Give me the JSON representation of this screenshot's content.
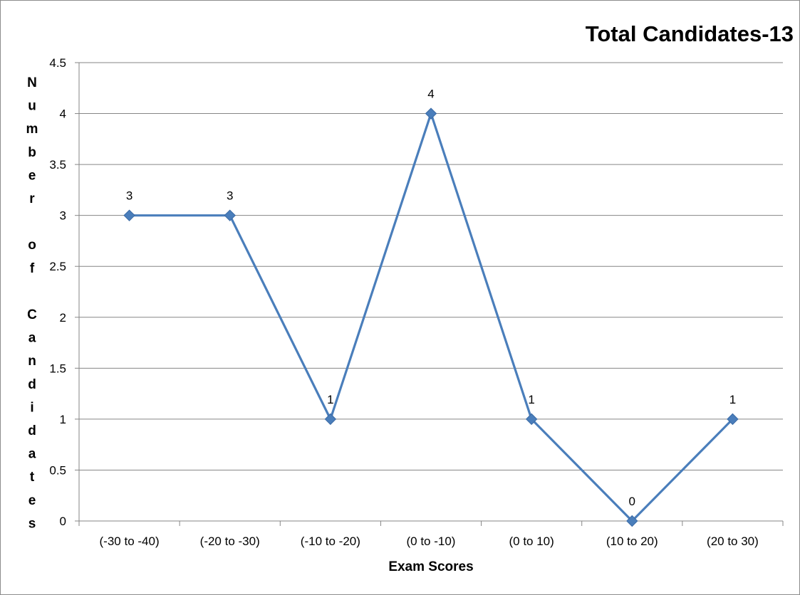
{
  "chart_data": {
    "type": "line",
    "title": "Total Candidates-13",
    "xlabel": "Exam Scores",
    "ylabel": "Number of Candidates",
    "ylabel_lines": [
      "N",
      "u",
      "m",
      "b",
      "e",
      "r",
      "",
      "o",
      "f",
      "",
      "C",
      "a",
      "n",
      "d",
      "i",
      "d",
      "a",
      "t",
      "e",
      "s"
    ],
    "categories": [
      "(-30 to -40)",
      "(-20 to -30)",
      "(-10 to -20)",
      "(0 to -10)",
      "(0 to 10)",
      "(10 to 20)",
      "(20 to 30)"
    ],
    "series": [
      {
        "values": [
          3,
          3,
          1,
          4,
          1,
          0,
          1
        ]
      }
    ],
    "data_labels": [
      "3",
      "3",
      "1",
      "4",
      "1",
      "0",
      "1"
    ],
    "ylim": [
      0,
      4.5
    ],
    "yticks": [
      "0",
      "0.5",
      "1",
      "1.5",
      "2",
      "2.5",
      "3",
      "3.5",
      "4",
      "4.5"
    ],
    "grid": true,
    "legend": "none",
    "colors": {
      "series": "#4a7ebb",
      "grid": "#868686",
      "axis": "#868686"
    }
  }
}
